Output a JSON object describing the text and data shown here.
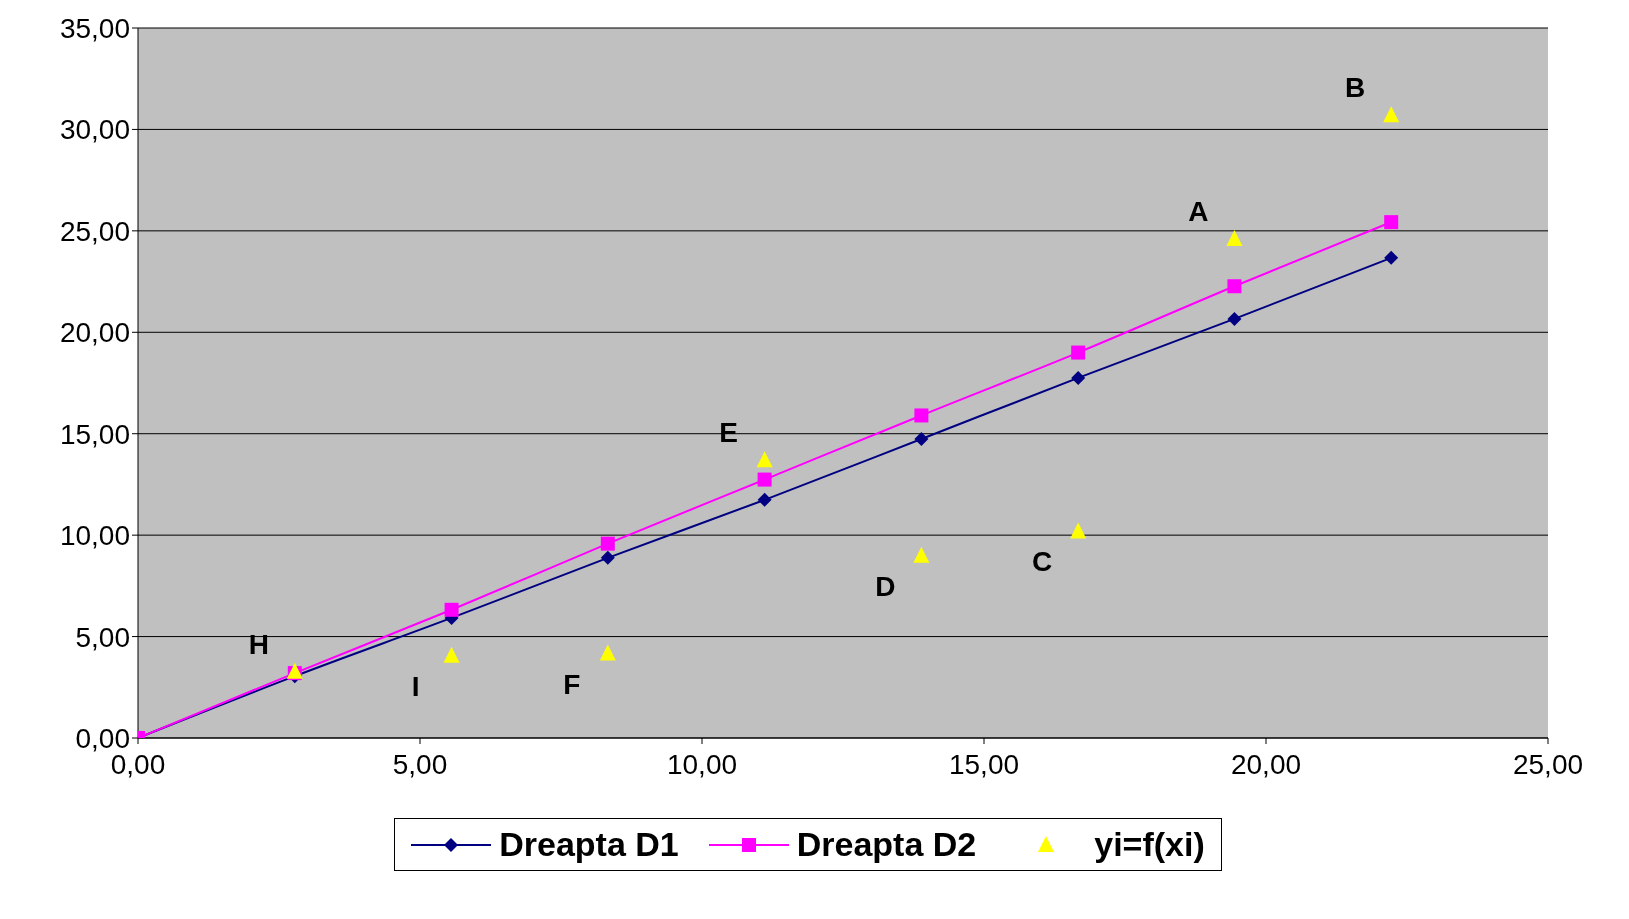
{
  "chart_data": {
    "type": "line",
    "x": [
      0,
      2.78,
      5.56,
      8.33,
      11.11,
      13.89,
      16.67,
      19.44,
      22.22
    ],
    "series": [
      {
        "name": "Dreapta D1",
        "color": "#000080",
        "marker": "diamond",
        "values": [
          0,
          3.05,
          5.92,
          8.88,
          11.74,
          14.74,
          17.75,
          20.66,
          23.67
        ]
      },
      {
        "name": "Dreapta D2",
        "color": "#ff00ff",
        "marker": "square",
        "values": [
          0,
          3.2,
          6.32,
          9.58,
          12.74,
          15.9,
          19.0,
          22.27,
          25.43
        ]
      },
      {
        "name": "yi=f(xi)",
        "type": "scatter",
        "color": "#ffff00",
        "marker": "triangle",
        "values": [
          null,
          3.26,
          4.06,
          4.16,
          13.69,
          8.98,
          10.18,
          24.6,
          30.7
        ]
      }
    ],
    "annotations": [
      {
        "text": "H",
        "x": 2.78,
        "y": 3.26
      },
      {
        "text": "I",
        "x": 5.56,
        "y": 4.06
      },
      {
        "text": "F",
        "x": 8.33,
        "y": 4.16
      },
      {
        "text": "E",
        "x": 11.11,
        "y": 13.69
      },
      {
        "text": "D",
        "x": 13.89,
        "y": 8.98
      },
      {
        "text": "C",
        "x": 16.67,
        "y": 10.18
      },
      {
        "text": "A",
        "x": 19.44,
        "y": 24.6
      },
      {
        "text": "B",
        "x": 22.22,
        "y": 30.7
      }
    ],
    "xlim": [
      0,
      25
    ],
    "xticks": [
      {
        "value": 0,
        "label": "0,00"
      },
      {
        "value": 5,
        "label": "5,00"
      },
      {
        "value": 10,
        "label": "10,00"
      },
      {
        "value": 15,
        "label": "15,00"
      },
      {
        "value": 20,
        "label": "20,00"
      },
      {
        "value": 25,
        "label": "25,00"
      }
    ],
    "ylim": [
      0,
      35
    ],
    "yticks": [
      {
        "value": 0,
        "label": "0,00"
      },
      {
        "value": 5,
        "label": "5,00"
      },
      {
        "value": 10,
        "label": "10,00"
      },
      {
        "value": 15,
        "label": "15,00"
      },
      {
        "value": 20,
        "label": "20,00"
      },
      {
        "value": 25,
        "label": "25,00"
      },
      {
        "value": 30,
        "label": "30,00"
      },
      {
        "value": 35,
        "label": "35,00"
      }
    ],
    "grid": "y",
    "legend": "bottom"
  }
}
